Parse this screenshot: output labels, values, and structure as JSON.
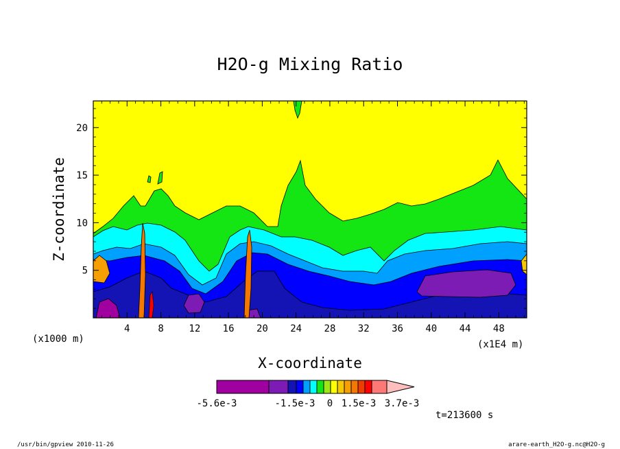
{
  "chart_data": {
    "type": "heatmap",
    "subtype": "filled-contour",
    "title": "H2O-g Mixing Ratio",
    "xlabel": "X-coordinate",
    "ylabel": "Z-coordinate",
    "x_scale_note": "(x1E4 m)",
    "y_scale_note": "(x1000 m)",
    "x_ticks": [
      4,
      8,
      12,
      16,
      20,
      24,
      28,
      32,
      36,
      40,
      44,
      48
    ],
    "y_ticks": [
      5,
      10,
      15,
      20
    ],
    "xlim": [
      0,
      51.3
    ],
    "ylim": [
      0,
      22.8
    ],
    "colorbar": {
      "labels": [
        "-5.6e-3",
        "-1.5e-3",
        "0",
        "1.5e-3",
        "3.7e-3"
      ],
      "levels": [
        -0.0056,
        -0.0035,
        -0.0025,
        -0.0015,
        -0.001,
        -0.0005,
        0,
        0.0005,
        0.001,
        0.0015,
        0.002,
        0.0027,
        0.0037
      ],
      "colors": [
        "#a000a0",
        "#7c1cb4",
        "#1414b4",
        "#0000ff",
        "#00a0ff",
        "#00ffff",
        "#14e614",
        "#a0e614",
        "#ffff00",
        "#f5c800",
        "#f5a000",
        "#f57800",
        "#f03c00",
        "#ff0000",
        "#ff7878",
        "#ffbebe"
      ]
    },
    "time_label": "t=213600 s",
    "footer_left": "/usr/bin/gpview  2010-11-26",
    "footer_right": "arare-earth_H2O-g.nc@H2O-g"
  }
}
